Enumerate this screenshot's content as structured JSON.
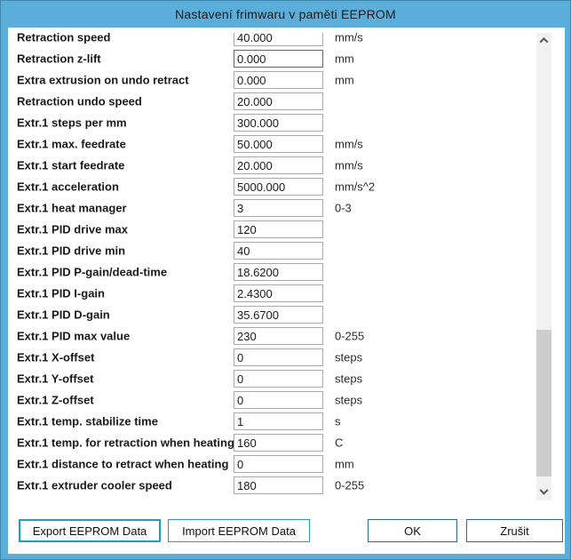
{
  "window": {
    "title": "Nastavení frimwaru v paměti EEPROM"
  },
  "rows": [
    {
      "label": "Retraction speed",
      "value": "40.000",
      "unit": "mm/s",
      "focused": false
    },
    {
      "label": "Retraction z-lift",
      "value": "0.000",
      "unit": "mm",
      "focused": true
    },
    {
      "label": "Extra extrusion on undo retract",
      "value": "0.000",
      "unit": "mm",
      "focused": false
    },
    {
      "label": "Retraction undo speed",
      "value": "20.000",
      "unit": "",
      "focused": false
    },
    {
      "label": "Extr.1 steps per mm",
      "value": "300.000",
      "unit": "",
      "focused": false
    },
    {
      "label": "Extr.1 max. feedrate",
      "value": "50.000",
      "unit": "mm/s",
      "focused": false
    },
    {
      "label": "Extr.1 start feedrate",
      "value": "20.000",
      "unit": "mm/s",
      "focused": false
    },
    {
      "label": "Extr.1 acceleration",
      "value": "5000.000",
      "unit": "mm/s^2",
      "focused": false
    },
    {
      "label": "Extr.1 heat manager",
      "value": "3",
      "unit": "0-3",
      "focused": false
    },
    {
      "label": "Extr.1 PID drive max",
      "value": "120",
      "unit": "",
      "focused": false
    },
    {
      "label": "Extr.1 PID drive min",
      "value": "40",
      "unit": "",
      "focused": false
    },
    {
      "label": "Extr.1 PID P-gain/dead-time",
      "value": "18.6200",
      "unit": "",
      "focused": false
    },
    {
      "label": "Extr.1 PID I-gain",
      "value": "2.4300",
      "unit": "",
      "focused": false
    },
    {
      "label": "Extr.1 PID D-gain",
      "value": "35.6700",
      "unit": "",
      "focused": false
    },
    {
      "label": "Extr.1 PID max value",
      "value": "230",
      "unit": "0-255",
      "focused": false
    },
    {
      "label": "Extr.1 X-offset",
      "value": "0",
      "unit": "steps",
      "focused": false
    },
    {
      "label": "Extr.1 Y-offset",
      "value": "0",
      "unit": "steps",
      "focused": false
    },
    {
      "label": "Extr.1 Z-offset",
      "value": "0",
      "unit": "steps",
      "focused": false
    },
    {
      "label": "Extr.1 temp. stabilize time",
      "value": "1",
      "unit": "s",
      "focused": false
    },
    {
      "label": "Extr.1 temp. for retraction when heating",
      "value": "160",
      "unit": "C",
      "focused": false
    },
    {
      "label": "Extr.1 distance to retract when heating",
      "value": "0",
      "unit": "mm",
      "focused": false
    },
    {
      "label": "Extr.1 extruder cooler speed",
      "value": "180",
      "unit": "0-255",
      "focused": false
    }
  ],
  "buttons": {
    "export": "Export EEPROM Data",
    "import": "Import EEPROM Data",
    "ok": "OK",
    "cancel": "Zrušit"
  },
  "colors": {
    "frame": "#5badda",
    "frame_border": "#3c85ad",
    "scrollbar_track": "#f1f1f1",
    "scrollbar_thumb": "#cdcdcd",
    "focus_button_border": "#1d9dc6"
  }
}
